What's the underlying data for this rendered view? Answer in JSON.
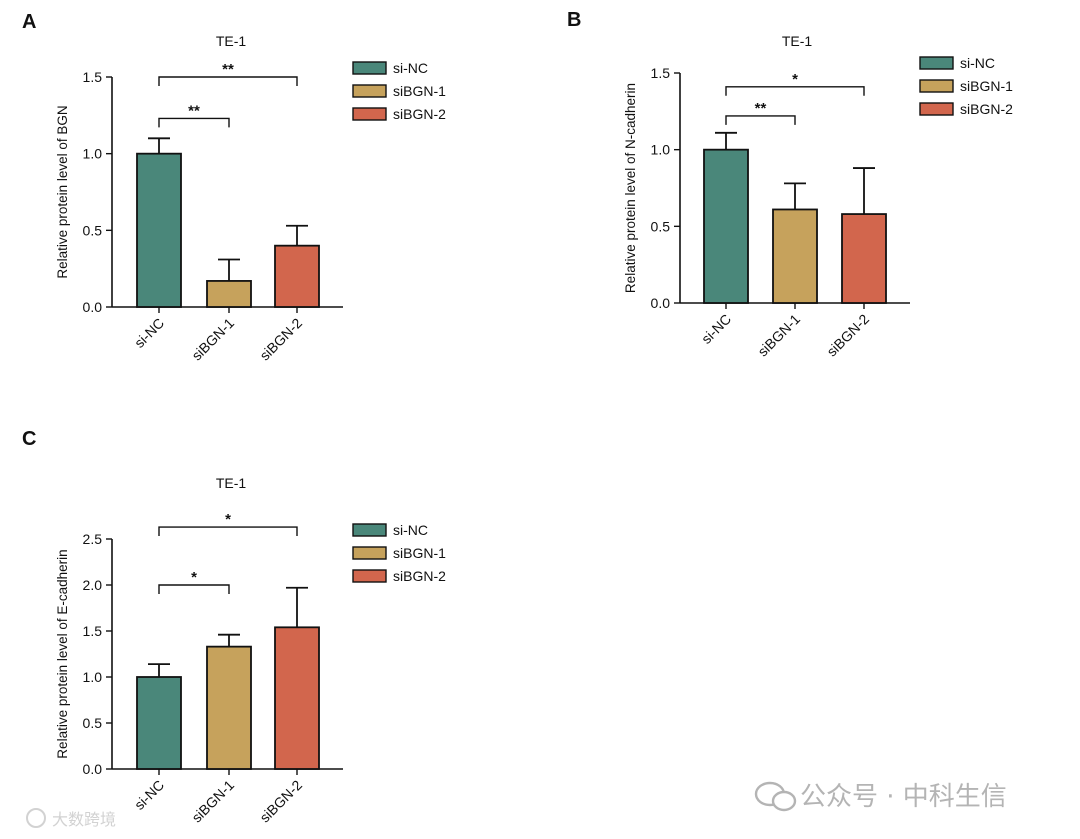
{
  "colors": {
    "si-NC": "#4a877a",
    "siBGN-1": "#c6a25c",
    "siBGN-2": "#d2664d",
    "ink": "#111111",
    "watermark": "#b4b4b4"
  },
  "chart_data": [
    {
      "panel": "A",
      "type": "bar",
      "title": "TE-1",
      "ylabel": "Relative protein level of BGN",
      "xlabel": "",
      "categories": [
        "si-NC",
        "siBGN-1",
        "siBGN-2"
      ],
      "values": [
        1.0,
        0.17,
        0.4
      ],
      "errors": [
        0.1,
        0.14,
        0.13
      ],
      "ylim": [
        0,
        1.5
      ],
      "yticks": [
        "0.0",
        "0.5",
        "1.0",
        "1.5"
      ],
      "yticks_values": [
        0,
        0.5,
        1.0,
        1.5
      ],
      "legend": [
        "si-NC",
        "siBGN-1",
        "siBGN-2"
      ],
      "legend_position": "right",
      "significance": [
        {
          "from": 0,
          "to": 1,
          "label": "**",
          "y": 1.23
        },
        {
          "from": 0,
          "to": 2,
          "label": "**",
          "y": 1.5
        }
      ]
    },
    {
      "panel": "B",
      "type": "bar",
      "title": "TE-1",
      "ylabel": "Relative protein level of  N-cadherin",
      "xlabel": "",
      "categories": [
        "si-NC",
        "siBGN-1",
        "siBGN-2"
      ],
      "values": [
        1.0,
        0.61,
        0.58
      ],
      "errors": [
        0.11,
        0.17,
        0.3
      ],
      "ylim": [
        0,
        1.5
      ],
      "yticks": [
        "0.0",
        "0.5",
        "1.0",
        "1.5"
      ],
      "yticks_values": [
        0,
        0.5,
        1.0,
        1.5
      ],
      "legend": [
        "si-NC",
        "siBGN-1",
        "siBGN-2"
      ],
      "legend_position": "right",
      "significance": [
        {
          "from": 0,
          "to": 1,
          "label": "**",
          "y": 1.22
        },
        {
          "from": 0,
          "to": 2,
          "label": "*",
          "y": 1.41
        }
      ]
    },
    {
      "panel": "C",
      "type": "bar",
      "title": "TE-1",
      "ylabel": "Relative protein level of E-cadherin",
      "xlabel": "",
      "categories": [
        "si-NC",
        "siBGN-1",
        "siBGN-2"
      ],
      "values": [
        1.0,
        1.33,
        1.54
      ],
      "errors": [
        0.14,
        0.13,
        0.43
      ],
      "ylim": [
        0,
        2.5
      ],
      "yticks": [
        "0.0",
        "0.5",
        "1.0",
        "1.5",
        "2.0",
        "2.5"
      ],
      "yticks_values": [
        0,
        0.5,
        1.0,
        1.5,
        2.0,
        2.5
      ],
      "legend": [
        "si-NC",
        "siBGN-1",
        "siBGN-2"
      ],
      "legend_position": "right",
      "significance": [
        {
          "from": 0,
          "to": 1,
          "label": "*",
          "y": 2.0
        },
        {
          "from": 0,
          "to": 2,
          "label": "*",
          "y": 2.63
        }
      ]
    }
  ],
  "watermarks": {
    "main": "公众号 · 中科生信",
    "corner": "大数跨境"
  }
}
